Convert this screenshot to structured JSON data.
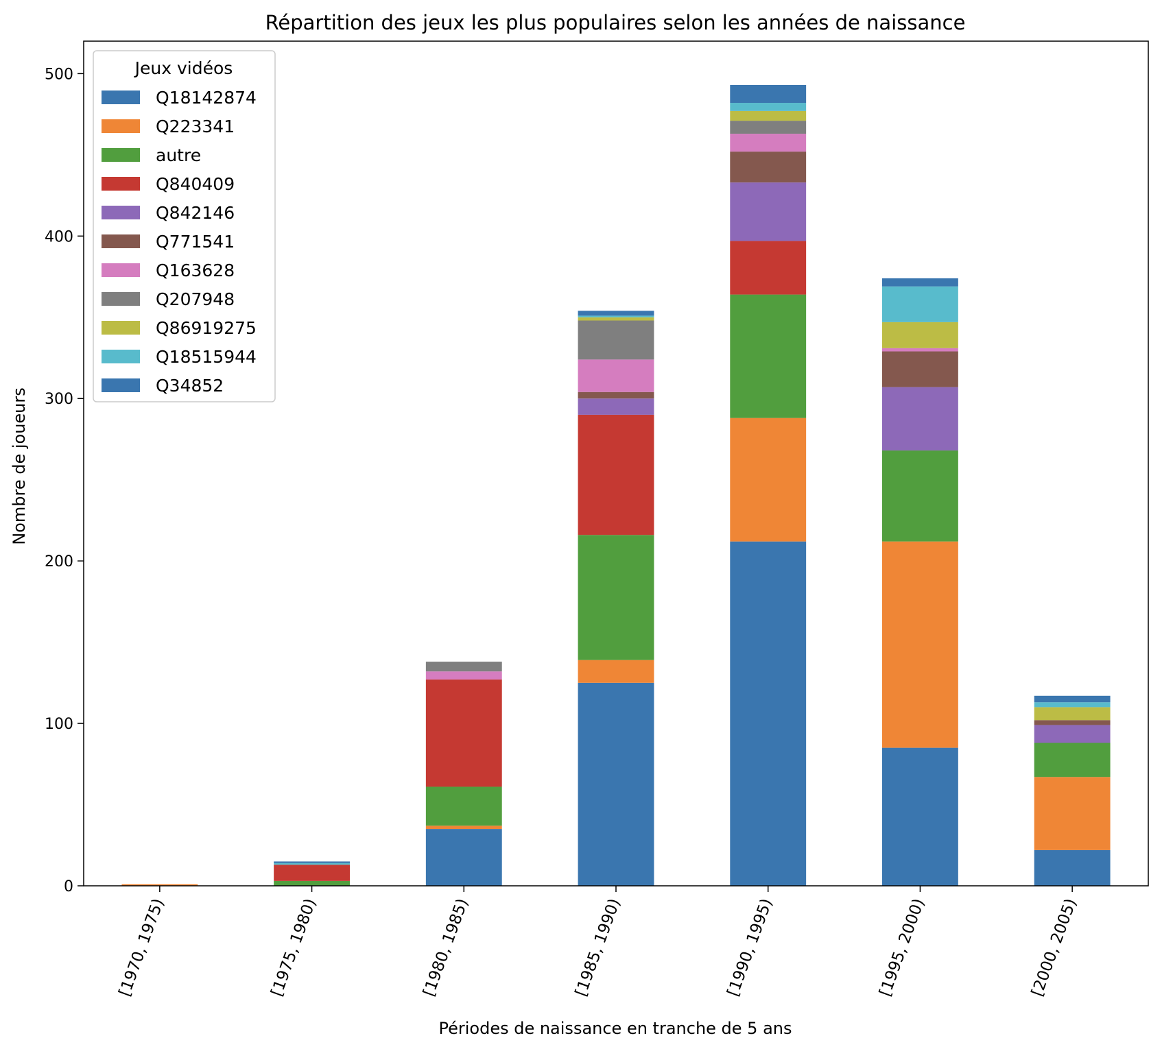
{
  "chart_data": {
    "type": "bar",
    "stacked": true,
    "title": "Répartition des jeux les plus populaires selon les années de naissance",
    "xlabel": "Périodes de naissance en tranche de 5 ans",
    "ylabel": "Nombre de joueurs",
    "ylim": [
      0,
      520
    ],
    "yticks": [
      0,
      100,
      200,
      300,
      400,
      500
    ],
    "categories": [
      "[1970, 1975)",
      "[1975, 1980)",
      "[1980, 1985)",
      "[1985, 1990)",
      "[1990, 1995)",
      "[1995, 2000)",
      "[2000, 2005)"
    ],
    "legend_title": "Jeux vidéos",
    "legend_position": "top-left",
    "series": [
      {
        "name": "Q18142874",
        "color": "#3a76af",
        "values": [
          0,
          0,
          35,
          125,
          212,
          85,
          22
        ]
      },
      {
        "name": "Q223341",
        "color": "#ef8636",
        "values": [
          1,
          0,
          2,
          14,
          76,
          127,
          45
        ]
      },
      {
        "name": "autre",
        "color": "#519e3e",
        "values": [
          0,
          3,
          24,
          77,
          76,
          56,
          21
        ]
      },
      {
        "name": "Q840409",
        "color": "#c53932",
        "values": [
          0,
          10,
          66,
          74,
          33,
          0,
          0
        ]
      },
      {
        "name": "Q842146",
        "color": "#8d69b8",
        "values": [
          0,
          0,
          0,
          10,
          36,
          39,
          11
        ]
      },
      {
        "name": "Q771541",
        "color": "#84584e",
        "values": [
          0,
          0,
          0,
          4,
          19,
          22,
          3
        ]
      },
      {
        "name": "Q163628",
        "color": "#d57dbf",
        "values": [
          0,
          0,
          5,
          20,
          11,
          2,
          0
        ]
      },
      {
        "name": "Q207948",
        "color": "#7f7f7f",
        "values": [
          0,
          0,
          6,
          24,
          8,
          0,
          0
        ]
      },
      {
        "name": "Q86919275",
        "color": "#bcbc45",
        "values": [
          0,
          0,
          0,
          2,
          6,
          16,
          8
        ]
      },
      {
        "name": "Q18515944",
        "color": "#58bbcc",
        "values": [
          0,
          1,
          0,
          1,
          5,
          22,
          3
        ]
      },
      {
        "name": "Q34852",
        "color": "#3a76af",
        "values": [
          0,
          1,
          0,
          3,
          11,
          5,
          4
        ]
      }
    ]
  }
}
